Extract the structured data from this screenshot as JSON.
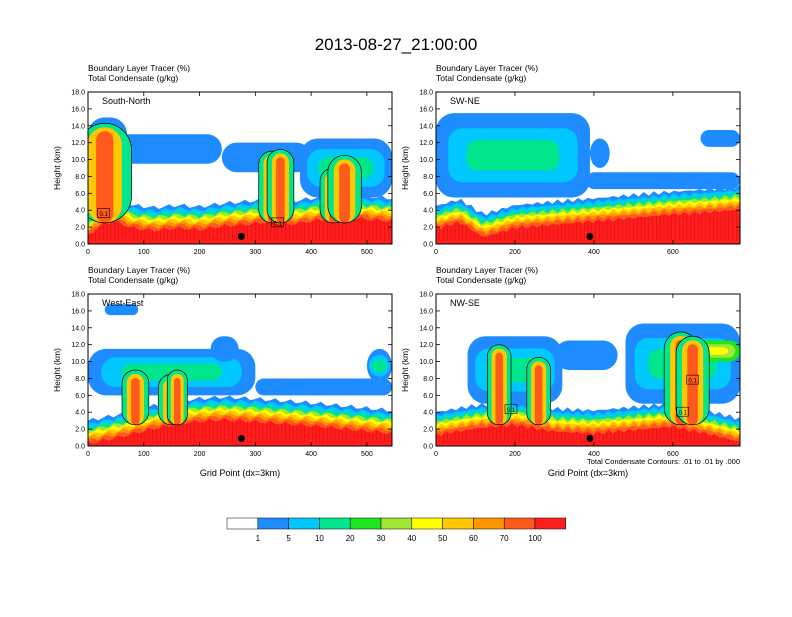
{
  "page": {
    "title": "2013-08-27_21:00:00",
    "panel_line1": "Boundary Layer Tracer   (%)",
    "panel_line2": "Total Condensate   (g/kg)",
    "ylabel": "Height (km)",
    "xlabel": "Grid Point (dx=3km)",
    "contour_note": "Total Condensate Contours: .01 to .01 by .000"
  },
  "colors": [
    "#ffffff",
    "#1e8cff",
    "#00c8ff",
    "#00e68c",
    "#1ee61e",
    "#a0e632",
    "#ffff00",
    "#ffc800",
    "#ff9600",
    "#ff5a1e",
    "#ff1e1e"
  ],
  "colorbar": {
    "labels": [
      "1",
      "5",
      "10",
      "20",
      "30",
      "40",
      "50",
      "60",
      "70",
      "100"
    ]
  },
  "chart_data": [
    {
      "type": "heatmap",
      "subtitle": "South-North",
      "xlim": [
        0,
        545
      ],
      "ylim": [
        0,
        18
      ],
      "xticks": [
        0,
        100,
        200,
        300,
        400,
        500
      ],
      "yticks": [
        "0.0",
        "2.0",
        "4.0",
        "6.0",
        "8.0",
        "10.0",
        "12.0",
        "14.0",
        "16.0",
        "18.0"
      ],
      "show_xlabel": false,
      "boundary_layer_top_km": [
        [
          0,
          3.6
        ],
        [
          20,
          4.8
        ],
        [
          45,
          5.4
        ],
        [
          80,
          4.6
        ],
        [
          120,
          4.3
        ],
        [
          160,
          4.6
        ],
        [
          200,
          4.4
        ],
        [
          240,
          4.8
        ],
        [
          280,
          5.0
        ],
        [
          320,
          5.3
        ],
        [
          360,
          5.0
        ],
        [
          420,
          5.6
        ],
        [
          470,
          5.8
        ],
        [
          545,
          5.4
        ]
      ],
      "cloud_bands": [
        {
          "x0": 30,
          "x1": 240,
          "y0": 9.5,
          "y1": 13.0,
          "level": 2
        },
        {
          "x0": 240,
          "x1": 400,
          "y0": 8.5,
          "y1": 12.0,
          "level": 1
        },
        {
          "x0": 380,
          "x1": 545,
          "y0": 5.5,
          "y1": 12.5,
          "level": 3
        },
        {
          "x0": 0,
          "x1": 70,
          "y0": 11.0,
          "y1": 15.0,
          "level": 2
        }
      ],
      "convective_towers": [
        {
          "x": 30,
          "top": 14.3,
          "w": 16
        },
        {
          "x": 330,
          "top": 11.0,
          "w": 8
        },
        {
          "x": 345,
          "top": 11.2,
          "w": 8
        },
        {
          "x": 440,
          "top": 9.0,
          "w": 8
        },
        {
          "x": 460,
          "top": 10.5,
          "w": 10
        }
      ],
      "contour_labels": [
        {
          "x": 28,
          "y": 3.6,
          "text": "0.1"
        },
        {
          "x": 340,
          "y": 2.5,
          "text": "0.1"
        }
      ],
      "marker_x": 275
    },
    {
      "type": "heatmap",
      "subtitle": "SW-NE",
      "xlim": [
        0,
        770
      ],
      "ylim": [
        0,
        18
      ],
      "xticks": [
        0,
        200,
        400,
        600
      ],
      "yticks": [
        "0.0",
        "2.0",
        "4.0",
        "6.0",
        "8.0",
        "10.0",
        "12.0",
        "14.0",
        "16.0",
        "18.0"
      ],
      "show_xlabel": false,
      "boundary_layer_top_km": [
        [
          0,
          4.5
        ],
        [
          60,
          5.3
        ],
        [
          120,
          3.5
        ],
        [
          200,
          4.6
        ],
        [
          300,
          5.0
        ],
        [
          400,
          5.4
        ],
        [
          500,
          5.8
        ],
        [
          600,
          6.2
        ],
        [
          700,
          6.5
        ],
        [
          770,
          6.8
        ]
      ],
      "cloud_bands": [
        {
          "x0": 0,
          "x1": 390,
          "y0": 5.5,
          "y1": 15.5,
          "level": 3
        },
        {
          "x0": 380,
          "x1": 770,
          "y0": 6.5,
          "y1": 8.5,
          "level": 2
        },
        {
          "x0": 390,
          "x1": 440,
          "y0": 9.0,
          "y1": 12.5,
          "level": 1
        },
        {
          "x0": 670,
          "x1": 770,
          "y0": 11.5,
          "y1": 13.5,
          "level": 1
        }
      ],
      "convective_towers": [],
      "contour_labels": [],
      "marker_x": 390
    },
    {
      "type": "heatmap",
      "subtitle": "West-East",
      "xlim": [
        0,
        545
      ],
      "ylim": [
        0,
        18
      ],
      "xticks": [
        0,
        100,
        200,
        300,
        400,
        500
      ],
      "yticks": [
        "0.0",
        "2.0",
        "4.0",
        "6.0",
        "8.0",
        "10.0",
        "12.0",
        "14.0",
        "16.0",
        "18.0"
      ],
      "show_xlabel": true,
      "boundary_layer_top_km": [
        [
          0,
          3.0
        ],
        [
          60,
          3.8
        ],
        [
          120,
          4.8
        ],
        [
          180,
          5.5
        ],
        [
          240,
          5.8
        ],
        [
          300,
          5.6
        ],
        [
          360,
          5.3
        ],
        [
          420,
          5.0
        ],
        [
          480,
          4.6
        ],
        [
          545,
          4.2
        ]
      ],
      "cloud_bands": [
        {
          "x0": 0,
          "x1": 300,
          "y0": 6.0,
          "y1": 11.5,
          "level": 3
        },
        {
          "x0": 220,
          "x1": 270,
          "y0": 10.0,
          "y1": 13.0,
          "level": 1
        },
        {
          "x0": 300,
          "x1": 545,
          "y0": 6.0,
          "y1": 8.0,
          "level": 2
        },
        {
          "x0": 500,
          "x1": 545,
          "y0": 7.5,
          "y1": 11.5,
          "level": 3
        },
        {
          "x0": 30,
          "x1": 90,
          "y0": 15.5,
          "y1": 16.8,
          "level": 1
        }
      ],
      "convective_towers": [
        {
          "x": 85,
          "top": 9.0,
          "w": 8
        },
        {
          "x": 150,
          "top": 8.5,
          "w": 8
        },
        {
          "x": 160,
          "top": 9.0,
          "w": 6
        }
      ],
      "contour_labels": [],
      "marker_x": 275
    },
    {
      "type": "heatmap",
      "subtitle": "NW-SE",
      "xlim": [
        0,
        770
      ],
      "ylim": [
        0,
        18
      ],
      "xticks": [
        0,
        200,
        400,
        600
      ],
      "yticks": [
        "0.0",
        "2.0",
        "4.0",
        "6.0",
        "8.0",
        "10.0",
        "12.0",
        "14.0",
        "16.0",
        "18.0"
      ],
      "show_xlabel": true,
      "boundary_layer_top_km": [
        [
          0,
          4.0
        ],
        [
          100,
          4.8
        ],
        [
          200,
          5.2
        ],
        [
          300,
          4.4
        ],
        [
          400,
          4.2
        ],
        [
          500,
          4.6
        ],
        [
          600,
          5.0
        ],
        [
          700,
          4.0
        ],
        [
          770,
          3.2
        ]
      ],
      "cloud_bands": [
        {
          "x0": 80,
          "x1": 320,
          "y0": 5.0,
          "y1": 13.0,
          "level": 3
        },
        {
          "x0": 300,
          "x1": 460,
          "y0": 9.0,
          "y1": 12.5,
          "level": 1
        },
        {
          "x0": 480,
          "x1": 770,
          "y0": 5.0,
          "y1": 14.5,
          "level": 3
        },
        {
          "x0": 620,
          "x1": 770,
          "y0": 10.0,
          "y1": 12.5,
          "level": 6
        }
      ],
      "convective_towers": [
        {
          "x": 160,
          "top": 12.0,
          "w": 10
        },
        {
          "x": 620,
          "top": 13.5,
          "w": 14
        },
        {
          "x": 650,
          "top": 13.0,
          "w": 14
        },
        {
          "x": 260,
          "top": 10.5,
          "w": 10
        }
      ],
      "contour_labels": [
        {
          "x": 190,
          "y": 4.3,
          "text": "0.1"
        },
        {
          "x": 625,
          "y": 4.0,
          "text": "0.1"
        },
        {
          "x": 650,
          "y": 7.8,
          "text": "0.1"
        }
      ],
      "marker_x": 390
    }
  ]
}
